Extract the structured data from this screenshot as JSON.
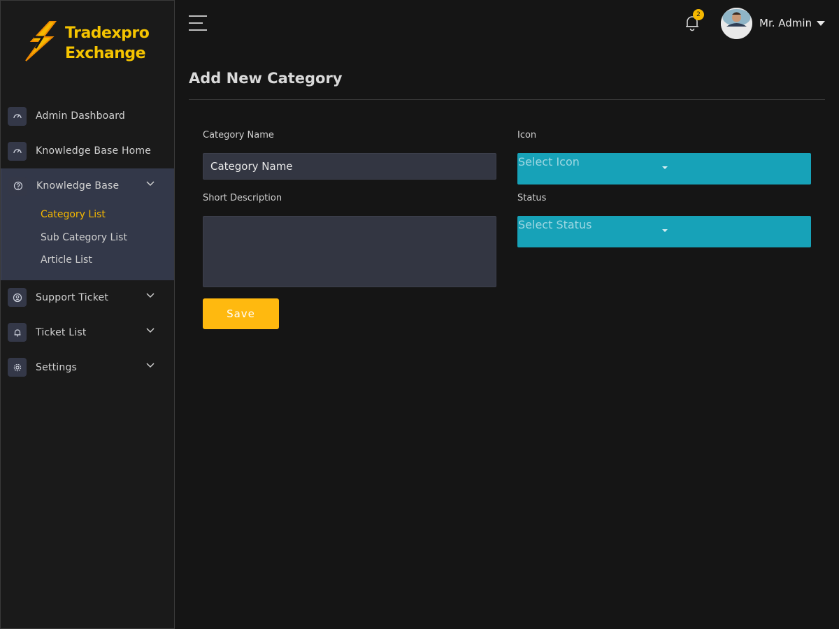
{
  "brand": {
    "line1": "Tradexpro",
    "line2": "Exchange",
    "color": "#f5c400"
  },
  "sidebar": {
    "items": [
      {
        "label": "Admin Dashboard",
        "icon": "speedometer-icon"
      },
      {
        "label": "Knowledge Base Home",
        "icon": "speedometer-icon"
      },
      {
        "label": "Knowledge Base",
        "icon": "help-circle-icon",
        "expanded": true,
        "children": [
          {
            "label": "Category List",
            "active": true
          },
          {
            "label": "Sub Category List"
          },
          {
            "label": "Article List"
          }
        ]
      },
      {
        "label": "Support Ticket",
        "icon": "user-circle-icon"
      },
      {
        "label": "Ticket List",
        "icon": "bell-icon"
      },
      {
        "label": "Settings",
        "icon": "gear-icon"
      }
    ]
  },
  "header": {
    "notifications_count": "2",
    "user_name": "Mr. Admin"
  },
  "page": {
    "title": "Add New Category",
    "form": {
      "category_name_label": "Category Name",
      "category_name_value": "Category Name",
      "icon_label": "Icon",
      "icon_select_placeholder": "Select Icon",
      "short_description_label": "Short Description",
      "status_label": "Status",
      "status_select_placeholder": "Select Status",
      "save_label": "Save"
    }
  },
  "colors": {
    "accent": "#ffb90f",
    "select_bg": "#17a2b8",
    "active_nav": "#f5b800"
  }
}
